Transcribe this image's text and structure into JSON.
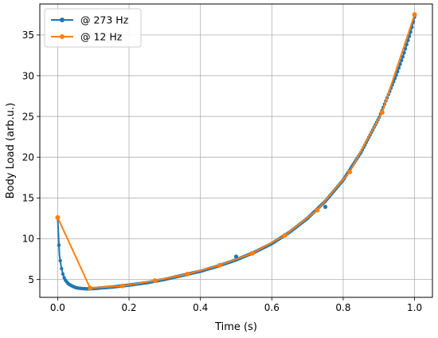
{
  "chart_data": {
    "type": "line",
    "title": "",
    "xlabel": "Time (s)",
    "ylabel": "Body Load (arb.u.)",
    "xlim": [
      -0.05,
      1.05
    ],
    "ylim": [
      2.8,
      38.8
    ],
    "xticks": [
      0.0,
      0.2,
      0.4,
      0.6,
      0.8,
      1.0
    ],
    "xtick_labels": [
      "0.0",
      "0.2",
      "0.4",
      "0.6",
      "0.8",
      "1.0"
    ],
    "yticks": [
      5,
      10,
      15,
      20,
      25,
      30,
      35
    ],
    "ytick_labels": [
      "5",
      "10",
      "15",
      "20",
      "25",
      "30",
      "35"
    ],
    "grid": true,
    "legend_position": "top-left",
    "series": [
      {
        "name": "@ 273 Hz",
        "color": "#1f77b4",
        "marker": "circle",
        "markers_visible": "dense",
        "x": [
          0.0,
          0.005,
          0.01,
          0.015,
          0.02,
          0.03,
          0.04,
          0.05,
          0.06,
          0.07,
          0.08,
          0.09,
          0.1,
          0.12,
          0.15,
          0.2,
          0.25,
          0.3,
          0.35,
          0.4,
          0.45,
          0.5,
          0.55,
          0.6,
          0.65,
          0.7,
          0.75,
          0.8,
          0.85,
          0.9,
          0.95,
          0.97,
          0.99,
          1.0
        ],
        "y": [
          12.5,
          8.0,
          6.5,
          5.6,
          5.0,
          4.45,
          4.2,
          4.0,
          3.92,
          3.87,
          3.85,
          3.85,
          3.87,
          3.95,
          4.05,
          4.3,
          4.6,
          5.0,
          5.5,
          6.0,
          6.65,
          7.4,
          8.3,
          9.4,
          10.8,
          12.5,
          14.6,
          17.2,
          20.6,
          24.8,
          30.2,
          32.7,
          35.5,
          37.2
        ],
        "outliers": [
          {
            "x": 0.5,
            "y": 7.8
          },
          {
            "x": 0.75,
            "y": 13.9
          }
        ]
      },
      {
        "name": "@ 12 Hz",
        "color": "#ff7f0e",
        "marker": "circle",
        "markers_visible": "all",
        "x": [
          0.0,
          0.0909,
          0.1818,
          0.2727,
          0.3636,
          0.4545,
          0.5455,
          0.6364,
          0.7273,
          0.8182,
          0.9091,
          1.0
        ],
        "y": [
          12.6,
          3.95,
          4.2,
          4.85,
          5.65,
          6.75,
          8.2,
          10.4,
          13.5,
          18.2,
          25.5,
          37.5
        ]
      }
    ]
  }
}
